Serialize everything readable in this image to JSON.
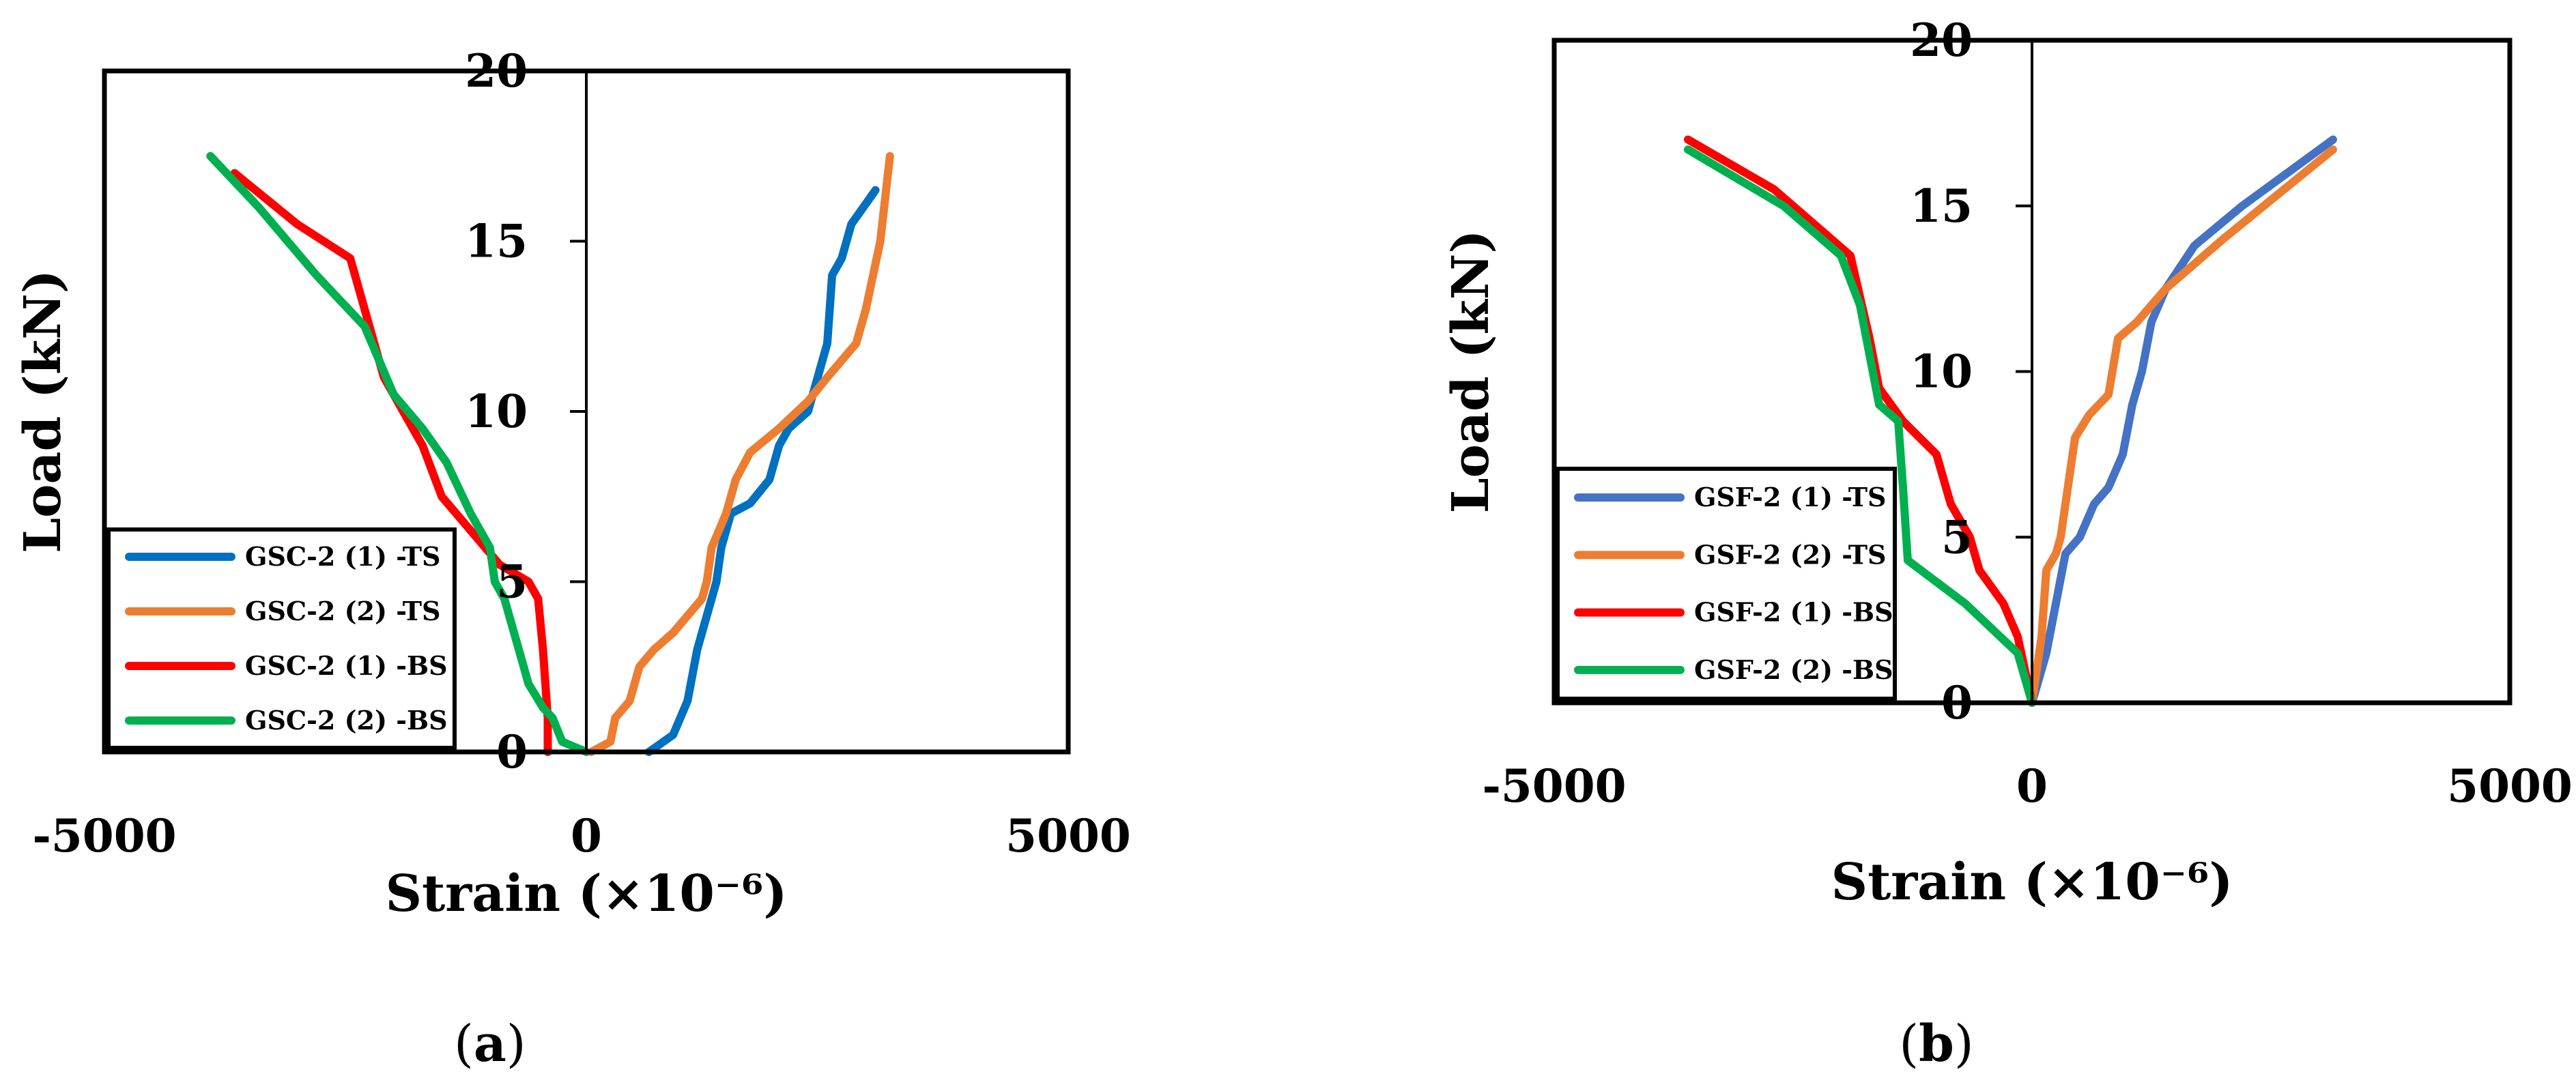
{
  "chart_data": [
    {
      "type": "line",
      "panel_label": "a",
      "xlabel": "Strain (×10⁻⁶)",
      "ylabel": "Load (kN)",
      "xlim": [
        -5000,
        5000
      ],
      "ylim": [
        0,
        20
      ],
      "xticks": [
        "-5000",
        "0",
        "5000"
      ],
      "yticks": [
        "0",
        "5",
        "10",
        "15",
        "20"
      ],
      "legend_position": "bottom-left",
      "grid": false,
      "series": [
        {
          "name": "GSC-2 (1) -TS",
          "color": "#0070C0",
          "points": [
            [
              650,
              0
            ],
            [
              900,
              0.5
            ],
            [
              1050,
              1.5
            ],
            [
              1150,
              3
            ],
            [
              1250,
              4
            ],
            [
              1350,
              5
            ],
            [
              1400,
              6
            ],
            [
              1500,
              7
            ],
            [
              1700,
              7.3
            ],
            [
              1900,
              8
            ],
            [
              2000,
              9
            ],
            [
              2100,
              9.5
            ],
            [
              2300,
              10
            ],
            [
              2400,
              11
            ],
            [
              2500,
              12
            ],
            [
              2550,
              14
            ],
            [
              2650,
              14.5
            ],
            [
              2750,
              15.5
            ],
            [
              3000,
              16.5
            ]
          ]
        },
        {
          "name": "GSC-2 (2) -TS",
          "color": "#ED7D31",
          "points": [
            [
              50,
              0
            ],
            [
              250,
              0.3
            ],
            [
              300,
              1
            ],
            [
              450,
              1.5
            ],
            [
              550,
              2.5
            ],
            [
              700,
              3
            ],
            [
              900,
              3.5
            ],
            [
              1050,
              4
            ],
            [
              1200,
              4.5
            ],
            [
              1250,
              5
            ],
            [
              1300,
              6
            ],
            [
              1450,
              7
            ],
            [
              1550,
              8
            ],
            [
              1700,
              8.8
            ],
            [
              2000,
              9.5
            ],
            [
              2300,
              10.3
            ],
            [
              2500,
              11
            ],
            [
              2800,
              12
            ],
            [
              2900,
              13
            ],
            [
              3050,
              15
            ],
            [
              3150,
              17.5
            ]
          ]
        },
        {
          "name": "GSC-2 (1) -BS",
          "color": "#FF0000",
          "points": [
            [
              -3650,
              17
            ],
            [
              -3000,
              15.5
            ],
            [
              -2450,
              14.5
            ],
            [
              -2300,
              13
            ],
            [
              -2100,
              11
            ],
            [
              -1900,
              10
            ],
            [
              -1700,
              9
            ],
            [
              -1500,
              7.5
            ],
            [
              -1200,
              6.5
            ],
            [
              -900,
              5.5
            ],
            [
              -600,
              5
            ],
            [
              -500,
              4.5
            ],
            [
              -450,
              3
            ],
            [
              -400,
              1
            ],
            [
              -400,
              0
            ]
          ]
        },
        {
          "name": "GSC-2 (2) -BS",
          "color": "#00B050",
          "points": [
            [
              -3900,
              17.5
            ],
            [
              -3400,
              16
            ],
            [
              -2800,
              14
            ],
            [
              -2300,
              12.5
            ],
            [
              -2000,
              10.5
            ],
            [
              -1700,
              9.5
            ],
            [
              -1450,
              8.5
            ],
            [
              -1200,
              7
            ],
            [
              -1000,
              6
            ],
            [
              -950,
              5
            ],
            [
              -850,
              4.5
            ],
            [
              -800,
              4
            ],
            [
              -700,
              3
            ],
            [
              -600,
              2
            ],
            [
              -450,
              1.3
            ],
            [
              -350,
              1
            ],
            [
              -250,
              0.3
            ],
            [
              0,
              0
            ]
          ]
        }
      ]
    },
    {
      "type": "line",
      "panel_label": "b",
      "xlabel": "Strain (×10⁻⁶)",
      "ylabel": "Load (kN)",
      "xlim": [
        -5000,
        5000
      ],
      "ylim": [
        0,
        20
      ],
      "xticks": [
        "-5000",
        "0",
        "5000"
      ],
      "yticks": [
        "0",
        "5",
        "10",
        "15",
        "20"
      ],
      "legend_position": "bottom-left",
      "grid": false,
      "series": [
        {
          "name": "GSF-2 (1) -TS",
          "color": "#4472C4",
          "points": [
            [
              0,
              0
            ],
            [
              150,
              1.5
            ],
            [
              250,
              3
            ],
            [
              350,
              4.5
            ],
            [
              500,
              5
            ],
            [
              650,
              6
            ],
            [
              800,
              6.5
            ],
            [
              950,
              7.5
            ],
            [
              1050,
              9
            ],
            [
              1150,
              10
            ],
            [
              1250,
              11.5
            ],
            [
              1400,
              12.5
            ],
            [
              1700,
              13.8
            ],
            [
              2200,
              15
            ],
            [
              3150,
              17
            ]
          ]
        },
        {
          "name": "GSF-2 (2) -TS",
          "color": "#ED7D31",
          "points": [
            [
              0,
              0
            ],
            [
              100,
              2
            ],
            [
              150,
              4
            ],
            [
              250,
              4.5
            ],
            [
              300,
              5
            ],
            [
              350,
              6
            ],
            [
              450,
              8
            ],
            [
              600,
              8.7
            ],
            [
              800,
              9.3
            ],
            [
              900,
              11
            ],
            [
              1100,
              11.5
            ],
            [
              1400,
              12.5
            ],
            [
              2000,
              14
            ],
            [
              3150,
              16.7
            ]
          ]
        },
        {
          "name": "GSF-2 (1) -BS",
          "color": "#FF0000",
          "points": [
            [
              -3600,
              17
            ],
            [
              -2700,
              15.5
            ],
            [
              -1900,
              13.5
            ],
            [
              -1700,
              11
            ],
            [
              -1600,
              9.5
            ],
            [
              -1350,
              8.5
            ],
            [
              -1000,
              7.5
            ],
            [
              -850,
              6
            ],
            [
              -650,
              5
            ],
            [
              -550,
              4
            ],
            [
              -300,
              3
            ],
            [
              -150,
              2
            ],
            [
              0,
              0
            ]
          ]
        },
        {
          "name": "GSF-2 (2) -BS",
          "color": "#00B050",
          "points": [
            [
              -3600,
              16.7
            ],
            [
              -2600,
              15
            ],
            [
              -2000,
              13.5
            ],
            [
              -1800,
              12
            ],
            [
              -1700,
              10.5
            ],
            [
              -1600,
              9
            ],
            [
              -1400,
              8.5
            ],
            [
              -1350,
              6.5
            ],
            [
              -1300,
              4.3
            ],
            [
              -700,
              3
            ],
            [
              -150,
              1.5
            ],
            [
              0,
              0
            ]
          ]
        }
      ]
    }
  ]
}
